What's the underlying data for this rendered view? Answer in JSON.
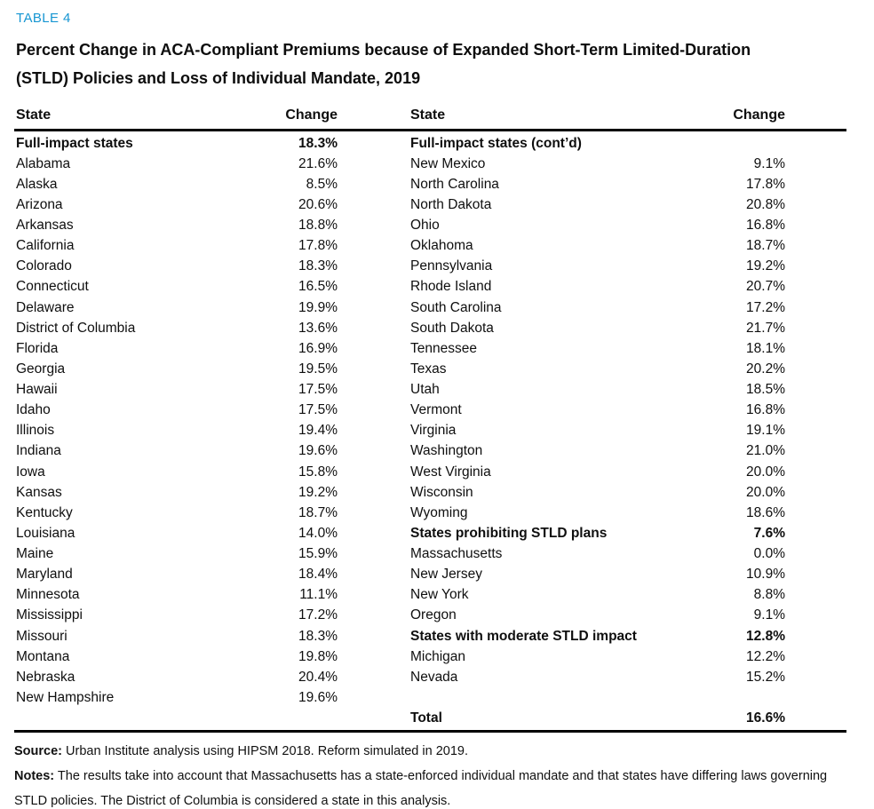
{
  "table_label": "TABLE 4",
  "accent_color": "#1696d2",
  "title_line1": "Percent Change in ACA-Compliant Premiums because of Expanded Short-Term Limited-Duration",
  "title_line2": "(STLD) Policies and Loss of Individual Mandate, 2019",
  "columns": {
    "state": "State",
    "change": "Change"
  },
  "left_rows": [
    {
      "label": "Full-impact states",
      "value": "18.3%",
      "bold": true
    },
    {
      "label": "Alabama",
      "value": "21.6%"
    },
    {
      "label": "Alaska",
      "value": "8.5%"
    },
    {
      "label": "Arizona",
      "value": "20.6%"
    },
    {
      "label": "Arkansas",
      "value": "18.8%"
    },
    {
      "label": "California",
      "value": "17.8%"
    },
    {
      "label": "Colorado",
      "value": "18.3%"
    },
    {
      "label": "Connecticut",
      "value": "16.5%"
    },
    {
      "label": "Delaware",
      "value": "19.9%"
    },
    {
      "label": "District of Columbia",
      "value": "13.6%"
    },
    {
      "label": "Florida",
      "value": "16.9%"
    },
    {
      "label": "Georgia",
      "value": "19.5%"
    },
    {
      "label": "Hawaii",
      "value": "17.5%"
    },
    {
      "label": "Idaho",
      "value": "17.5%"
    },
    {
      "label": "Illinois",
      "value": "19.4%"
    },
    {
      "label": "Indiana",
      "value": "19.6%"
    },
    {
      "label": "Iowa",
      "value": "15.8%"
    },
    {
      "label": "Kansas",
      "value": "19.2%"
    },
    {
      "label": "Kentucky",
      "value": "18.7%"
    },
    {
      "label": "Louisiana",
      "value": "14.0%"
    },
    {
      "label": "Maine",
      "value": "15.9%"
    },
    {
      "label": "Maryland",
      "value": "18.4%"
    },
    {
      "label": "Minnesota",
      "value": "11.1%"
    },
    {
      "label": "Mississippi",
      "value": "17.2%"
    },
    {
      "label": "Missouri",
      "value": "18.3%"
    },
    {
      "label": "Montana",
      "value": "19.8%"
    },
    {
      "label": "Nebraska",
      "value": "20.4%"
    },
    {
      "label": "New Hampshire",
      "value": "19.6%"
    }
  ],
  "right_rows": [
    {
      "label": "Full-impact states (cont’d)",
      "value": "",
      "bold": true
    },
    {
      "label": "New Mexico",
      "value": "9.1%"
    },
    {
      "label": "North Carolina",
      "value": "17.8%"
    },
    {
      "label": "North Dakota",
      "value": "20.8%"
    },
    {
      "label": "Ohio",
      "value": "16.8%"
    },
    {
      "label": "Oklahoma",
      "value": "18.7%"
    },
    {
      "label": "Pennsylvania",
      "value": "19.2%"
    },
    {
      "label": "Rhode Island",
      "value": "20.7%"
    },
    {
      "label": "South Carolina",
      "value": "17.2%"
    },
    {
      "label": "South Dakota",
      "value": "21.7%"
    },
    {
      "label": "Tennessee",
      "value": "18.1%"
    },
    {
      "label": "Texas",
      "value": "20.2%"
    },
    {
      "label": "Utah",
      "value": "18.5%"
    },
    {
      "label": "Vermont",
      "value": "16.8%"
    },
    {
      "label": "Virginia",
      "value": "19.1%"
    },
    {
      "label": "Washington",
      "value": "21.0%"
    },
    {
      "label": "West Virginia",
      "value": "20.0%"
    },
    {
      "label": "Wisconsin",
      "value": "20.0%"
    },
    {
      "label": "Wyoming",
      "value": "18.6%"
    },
    {
      "label": "States prohibiting STLD plans",
      "value": "7.6%",
      "bold": true
    },
    {
      "label": "Massachusetts",
      "value": "0.0%"
    },
    {
      "label": "New Jersey",
      "value": "10.9%"
    },
    {
      "label": "New York",
      "value": "8.8%"
    },
    {
      "label": "Oregon",
      "value": "9.1%"
    },
    {
      "label": "States with moderate STLD impact",
      "value": "12.8%",
      "bold": true
    },
    {
      "label": "Michigan",
      "value": "12.2%"
    },
    {
      "label": "Nevada",
      "value": "15.2%"
    }
  ],
  "total": {
    "label": "Total",
    "value": "16.6%"
  },
  "source_label": "Source:",
  "source_text": " Urban Institute analysis using HIPSM 2018. Reform simulated in 2019.",
  "notes_label": "Notes:",
  "notes_text": " The results take into account that Massachusetts has a state-enforced individual mandate and that states have differing laws governing STLD policies. The District of Columbia is considered a state in this analysis."
}
